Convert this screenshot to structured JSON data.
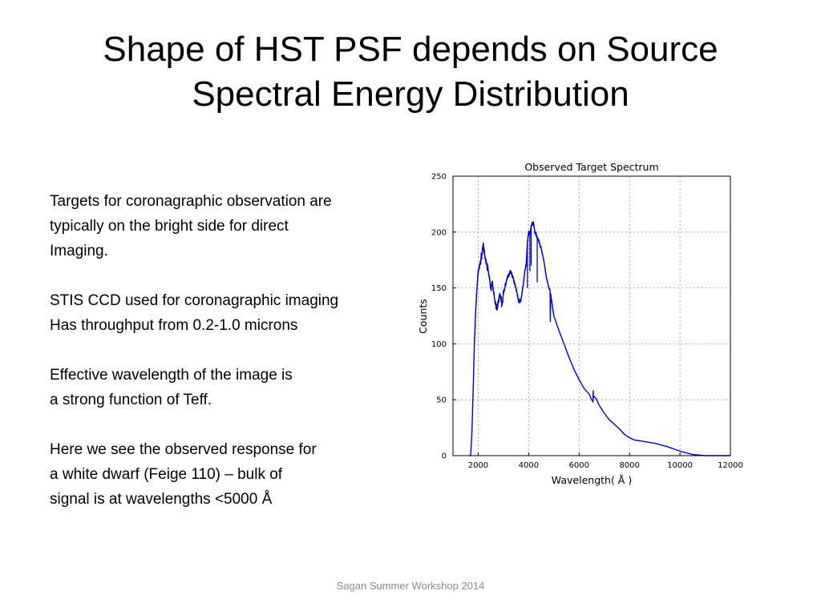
{
  "slide": {
    "title_lines": [
      "Shape of HST PSF depends on Source",
      "Spectral Energy Distribution"
    ],
    "paragraphs": [
      [
        "Targets for coronagraphic observation are",
        "typically on the bright side for direct",
        "Imaging."
      ],
      [
        "STIS CCD used for coronagraphic imaging",
        "Has throughput from 0.2-1.0 microns"
      ],
      [
        "Effective wavelength of the image is",
        "a strong function of Teff."
      ],
      [
        "Here we see the observed response for",
        "a white dwarf (Feige 110) – bulk of",
        "signal is at wavelengths <5000 Å"
      ]
    ],
    "footer": "Sagan Summer Workshop 2014"
  },
  "chart_data": {
    "type": "line",
    "title": "Observed Target Spectrum",
    "xlabel": "Wavelength( Å )",
    "ylabel": "Counts",
    "xlim": [
      1000,
      12000
    ],
    "ylim": [
      0,
      250
    ],
    "xticks": [
      2000,
      4000,
      6000,
      8000,
      10000,
      12000
    ],
    "yticks": [
      0,
      50,
      100,
      150,
      200,
      250
    ],
    "grid": true,
    "series_color": "#0000cc",
    "series": [
      {
        "x": [
          1650,
          1700,
          1750,
          1800,
          1850,
          1900,
          1950,
          2000,
          2050,
          2100,
          2150,
          2200,
          2250,
          2300,
          2350,
          2400,
          2450,
          2500,
          2550,
          2600,
          2650,
          2700,
          2750,
          2800,
          2850,
          2900,
          2950,
          3000,
          3100,
          3200,
          3300,
          3400,
          3500,
          3600,
          3700,
          3800,
          3850,
          3900,
          3950,
          4000,
          4050,
          4100,
          4150,
          4200,
          4250,
          4300,
          4400,
          4500,
          4600,
          4700,
          4800,
          4850,
          4860,
          4870,
          4900,
          5000,
          5200,
          5400,
          5600,
          5800,
          6000,
          6200,
          6400,
          6500,
          6550,
          6560,
          6570,
          6600,
          6700,
          6800,
          7000,
          7200,
          7400,
          7600,
          7800,
          8000,
          8200,
          8500,
          9000,
          9500,
          10000,
          10500,
          11000,
          11500,
          12000
        ],
        "y": [
          0,
          0,
          20,
          60,
          100,
          130,
          150,
          165,
          170,
          175,
          180,
          190,
          180,
          175,
          170,
          165,
          158,
          150,
          155,
          148,
          140,
          135,
          130,
          138,
          145,
          140,
          135,
          145,
          155,
          162,
          165,
          158,
          150,
          138,
          140,
          155,
          165,
          170,
          190,
          200,
          198,
          205,
          208,
          207,
          200,
          198,
          192,
          185,
          175,
          160,
          150,
          148,
          120,
          145,
          140,
          125,
          112,
          100,
          88,
          77,
          68,
          60,
          55,
          50,
          48,
          58,
          52,
          53,
          50,
          45,
          38,
          32,
          28,
          24,
          19,
          16,
          14,
          13,
          11,
          8,
          4,
          1,
          0,
          0,
          0
        ],
        "dips": [
          [
            3950,
            150
          ],
          [
            4050,
            165
          ],
          [
            4100,
            170
          ],
          [
            4340,
            155
          ],
          [
            4860,
            120
          ]
        ]
      }
    ]
  }
}
